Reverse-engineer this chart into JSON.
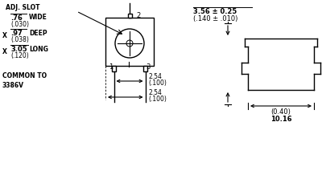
{
  "bg_color": "#ffffff",
  "line_color": "#000000",
  "text_color": "#000000",
  "figsize": [
    4.0,
    2.18
  ],
  "dpi": 100,
  "labels": {
    "adj_slot": "ADJ. SLOT",
    "wide_top": ".76",
    "wide_bot": "(.030)",
    "wide_label": "WIDE",
    "deep_top": ".97",
    "deep_bot": "(.038)",
    "deep_label": "DEEP",
    "long_top": "3.05",
    "long_bot": "(.120)",
    "long_label": "LONG",
    "common": "COMMON TO\n3386V",
    "dim1_top": "3.56 ± 0.25",
    "dim1_bot": "(.140 ± .010)",
    "dim2_val": "2.54",
    "dim2_unit": "(.100)",
    "dim3_val": "2.54",
    "dim3_unit": "(.100)",
    "dim4_top": "10.16",
    "dim4_bot": "(0.40)",
    "pin1": "1",
    "pin2": "2",
    "pin3": "3",
    "x1": "X",
    "x2": "X"
  },
  "font_sizes": {
    "label": 5.5,
    "dim": 5.5,
    "pin": 6.0
  }
}
